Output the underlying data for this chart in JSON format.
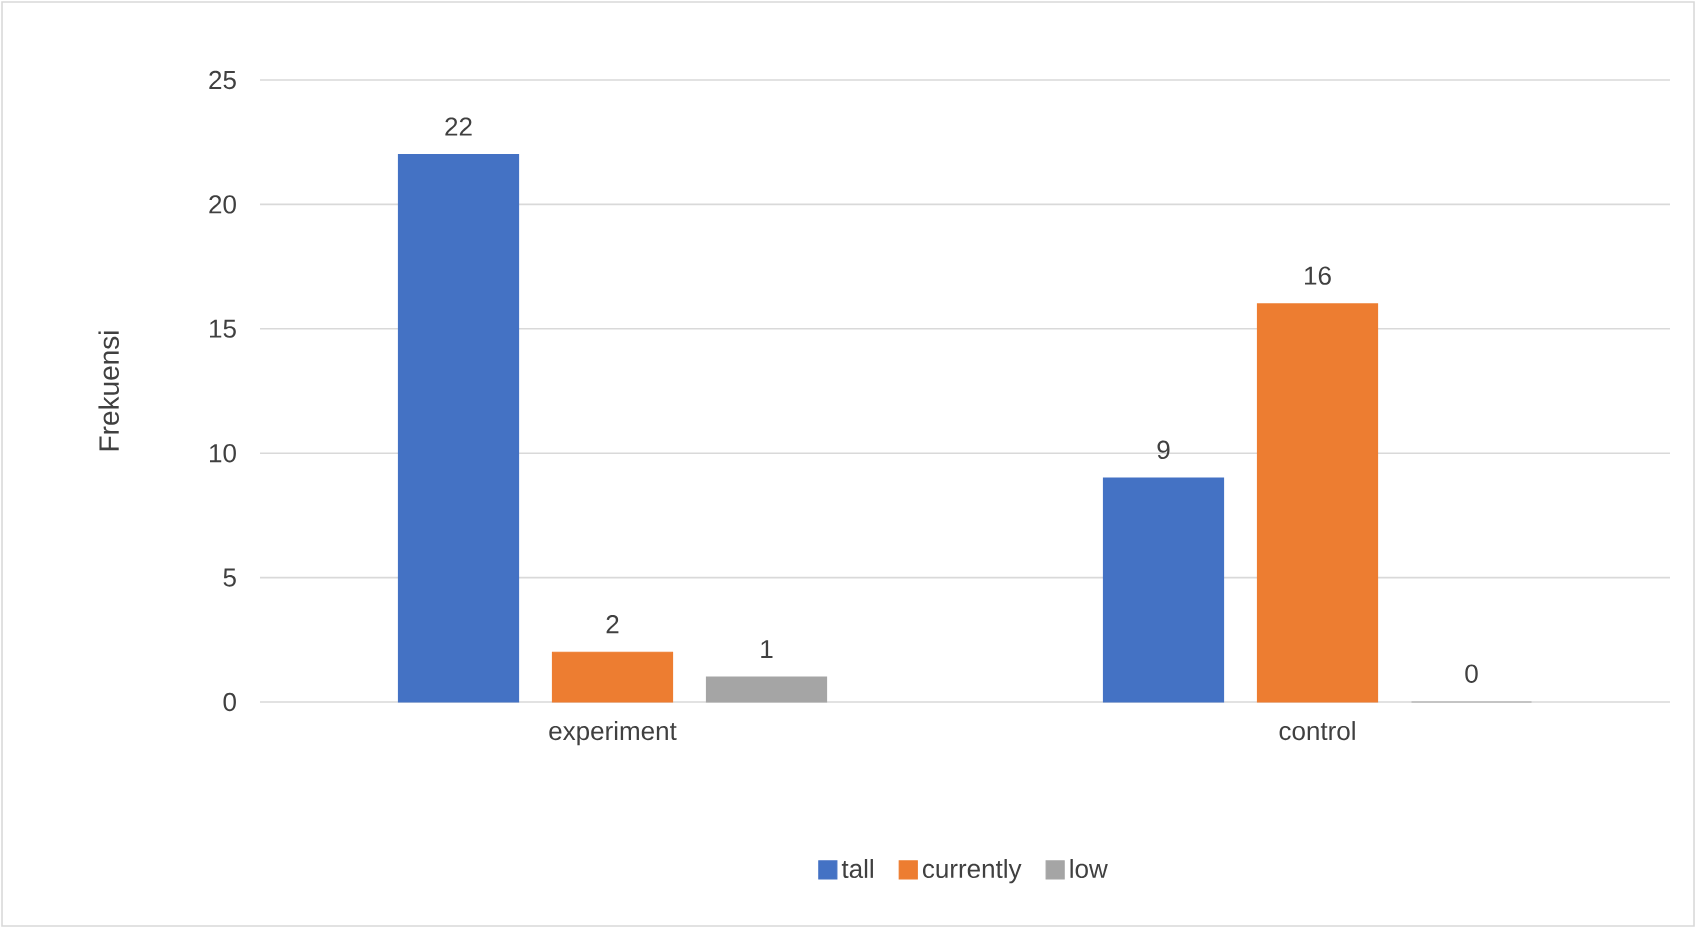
{
  "chart_data": {
    "type": "bar",
    "ylabel": "Frekuensi",
    "categories": [
      "experiment",
      "control"
    ],
    "series": [
      {
        "name": "tall",
        "color": "#4472c4",
        "values": [
          22,
          9
        ],
        "value_labels": [
          "22",
          "9"
        ]
      },
      {
        "name": "currently",
        "color": "#ed7d31",
        "values": [
          2,
          16
        ],
        "value_labels": [
          "2",
          "16"
        ]
      },
      {
        "name": "low",
        "color": "#a5a5a5",
        "values": [
          1,
          0
        ],
        "value_labels": [
          "1",
          "0"
        ]
      }
    ],
    "ylim": [
      0,
      25
    ],
    "yticks": [
      0,
      5,
      10,
      15,
      20,
      25
    ],
    "grid": "y",
    "legend": "bottom"
  }
}
